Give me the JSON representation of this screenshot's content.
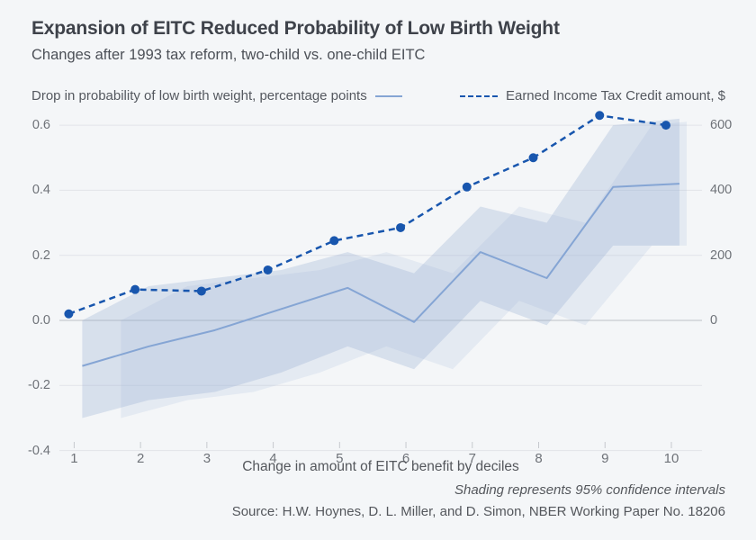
{
  "header": {
    "title": "Expansion of EITC Reduced Probability of Low Birth Weight",
    "subtitle": "Changes after 1993 tax reform, two-child vs. one-child EITC"
  },
  "legend": {
    "items": [
      {
        "label": "Drop in probability of low birth weight, percentage points",
        "line_style": "solid",
        "color": "#85a5d4"
      },
      {
        "label": "Earned Income Tax Credit amount, $",
        "line_style": "dashed",
        "color": "#1856ae"
      }
    ]
  },
  "chart_data": {
    "type": "line",
    "x": [
      1,
      2,
      3,
      4,
      5,
      6,
      7,
      8,
      9,
      10
    ],
    "xlabel": "Change in amount of EITC benefit by deciles",
    "series": [
      {
        "name": "Drop in probability of low birth weight, percentage points",
        "axis": "left",
        "unit": "percentage points",
        "style": "solid",
        "color": "#85a5d4",
        "values": [
          -0.14,
          -0.08,
          -0.03,
          0.035,
          0.1,
          -0.005,
          0.21,
          0.13,
          0.41,
          0.42
        ]
      },
      {
        "name": "Earned Income Tax Credit amount, $",
        "axis": "right",
        "unit": "$",
        "style": "dashed",
        "color": "#1856ae",
        "marker": "circle",
        "values": [
          20,
          95,
          90,
          155,
          245,
          285,
          410,
          500,
          630,
          600
        ]
      }
    ],
    "confidence_band": {
      "label": "95% confidence interval",
      "applies_to": "Drop in probability of low birth weight, percentage points",
      "upper": [
        0.0,
        0.105,
        0.13,
        0.155,
        0.21,
        0.145,
        0.35,
        0.3,
        0.6,
        0.62
      ],
      "lower": [
        -0.3,
        -0.245,
        -0.22,
        -0.16,
        -0.08,
        -0.15,
        0.06,
        -0.015,
        0.23,
        0.23
      ],
      "fill": "#dce4f0"
    },
    "left_axis": {
      "tick_labels": [
        "0.6",
        "0.4",
        "0.2",
        "0.0",
        "-0.2",
        "-0.4"
      ],
      "tick_values": [
        0.6,
        0.4,
        0.2,
        0,
        -0.2,
        -0.4
      ],
      "range": [
        -0.4,
        0.65
      ]
    },
    "right_axis": {
      "tick_labels": [
        "600",
        "400",
        "200",
        "0"
      ],
      "tick_values": [
        600,
        400,
        200,
        0
      ],
      "scale_vs_left": 1000
    },
    "grid": true,
    "legend_position": "top"
  },
  "footer": {
    "note": "Shading represents 95% confidence intervals",
    "source": "Source: H.W. Hoynes, D. L. Miller, and D. Simon, NBER Working Paper No. 18206"
  }
}
